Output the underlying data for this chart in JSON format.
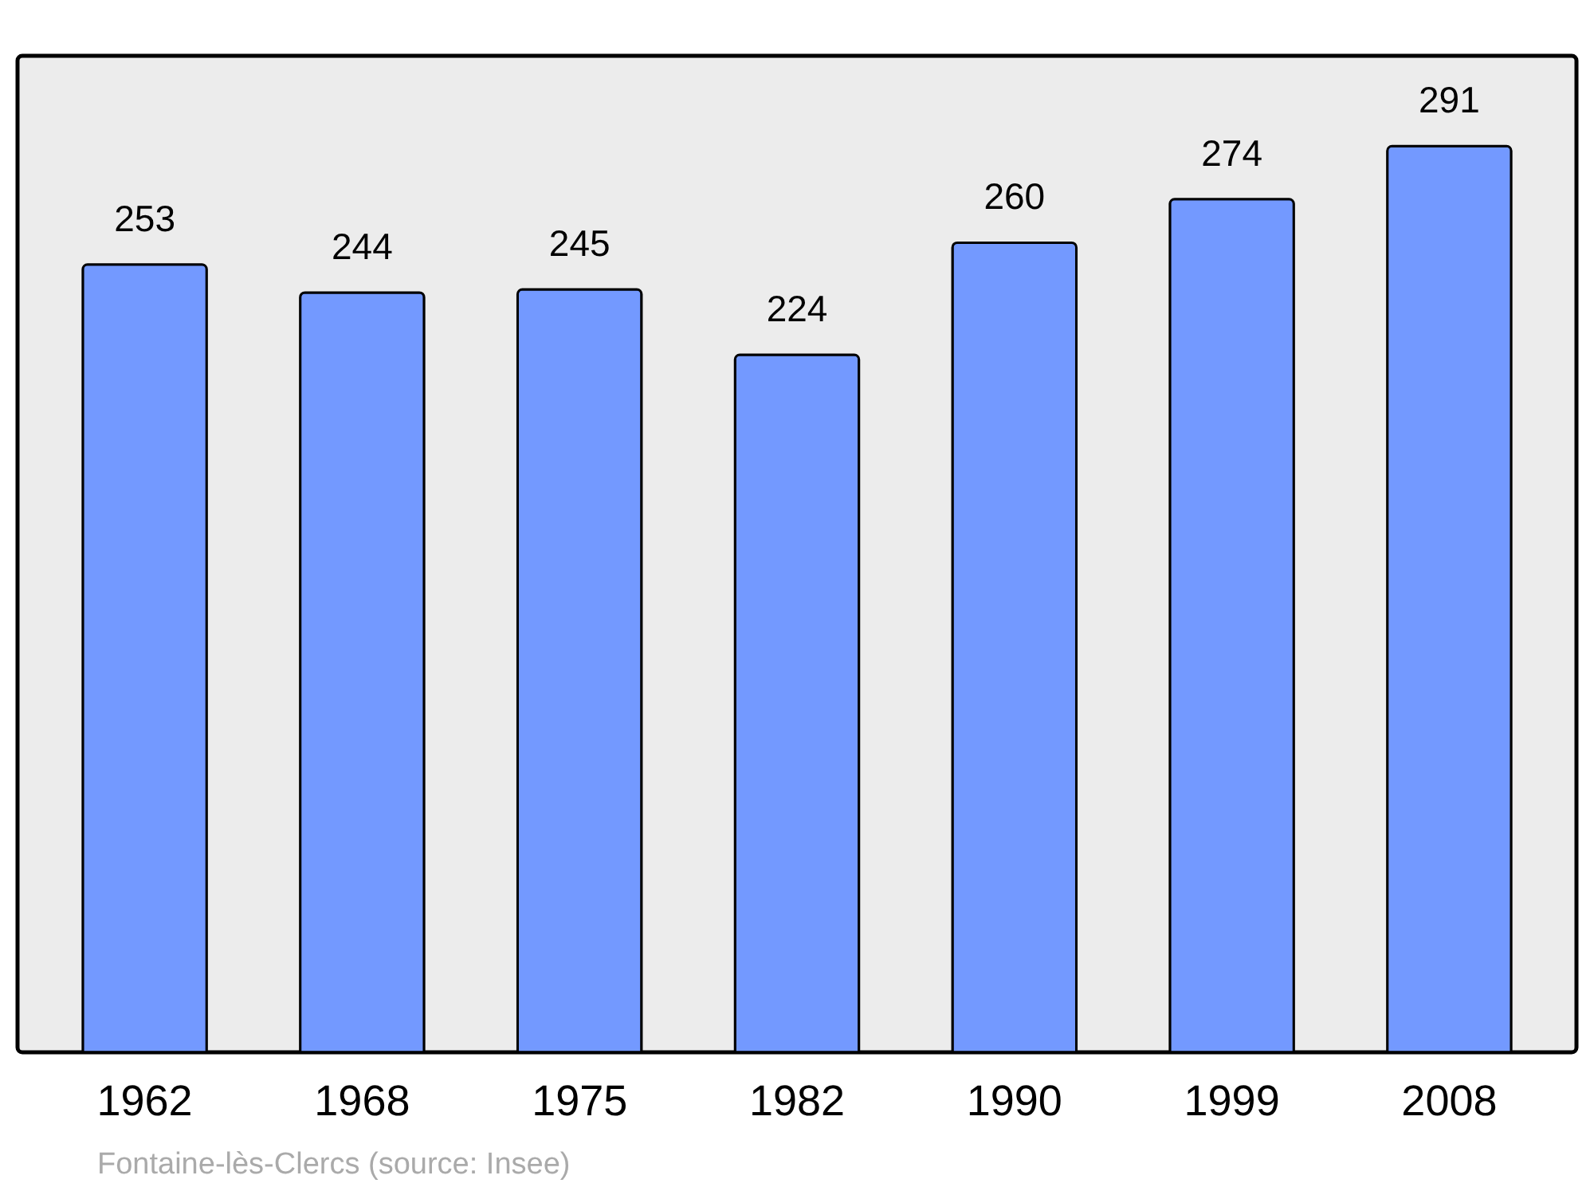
{
  "chart_data": {
    "type": "bar",
    "categories": [
      "1962",
      "1968",
      "1975",
      "1982",
      "1990",
      "1999",
      "2008"
    ],
    "values": [
      253,
      244,
      245,
      224,
      260,
      274,
      291
    ],
    "color": "#7399ff",
    "ylim": [
      0,
      320
    ],
    "data_labels": true,
    "grid": false,
    "tick_labels": "x",
    "annotations": [
      "Fontaine-lès-Clercs    (source: Insee)"
    ]
  }
}
